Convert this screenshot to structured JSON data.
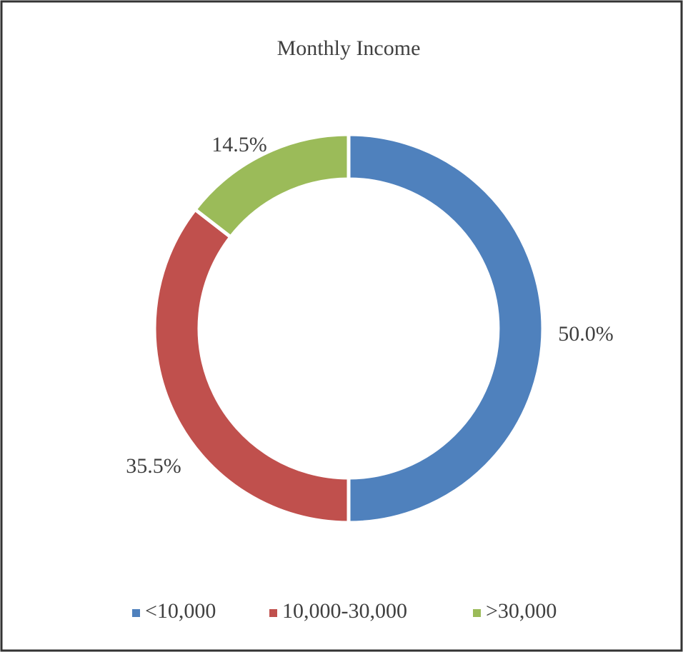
{
  "chart_data": {
    "type": "donut",
    "title": "Monthly Income",
    "categories": [
      "<10,000",
      "10,000-30,000",
      ">30,000"
    ],
    "values": [
      50.0,
      35.5,
      14.5
    ],
    "value_labels": [
      "50.0%",
      "35.5%",
      "14.5%"
    ],
    "colors": [
      "#4f81bd",
      "#c0504d",
      "#9bbb59"
    ],
    "legend": "bottom"
  }
}
